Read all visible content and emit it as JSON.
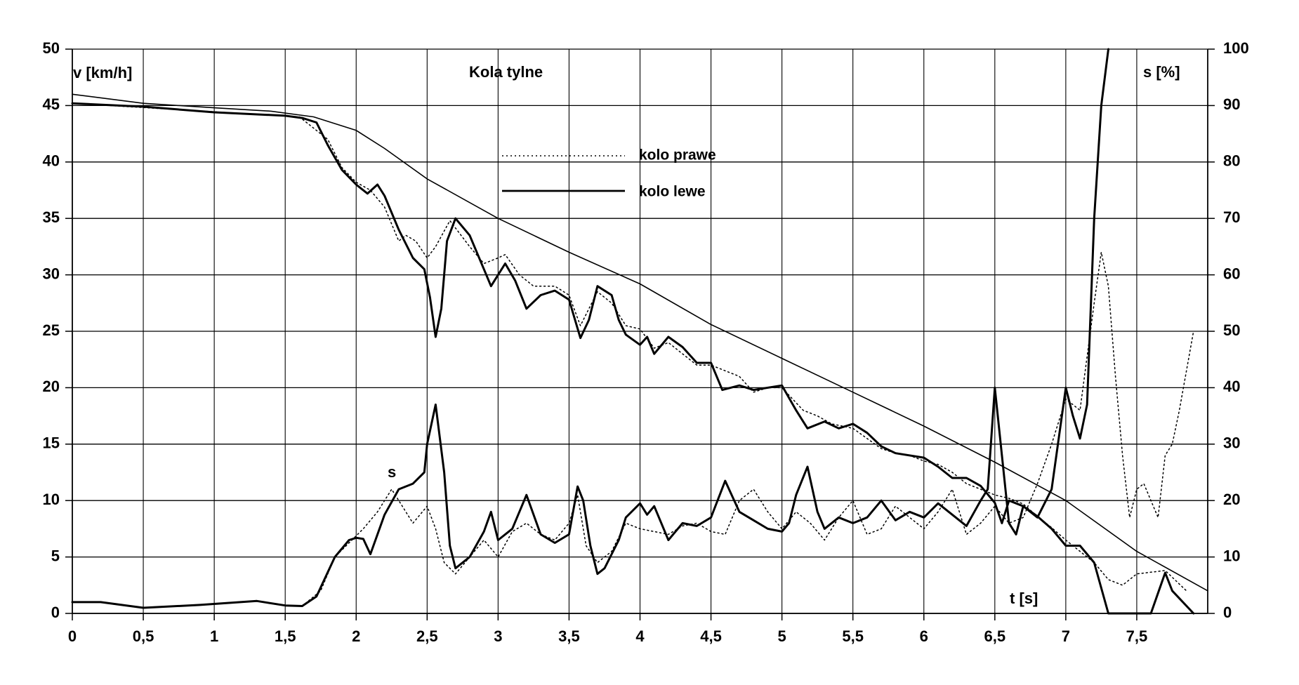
{
  "chart_data": {
    "type": "line",
    "title": "Kola tylne",
    "ylabel_left": "v [km/h]",
    "ylabel_right": "s [%]",
    "xlabel": "t [s]",
    "s_marker_label": "s",
    "xlim": [
      0,
      8
    ],
    "ylim_left": [
      0,
      50
    ],
    "ylim_right": [
      0,
      100
    ],
    "x_ticks": [
      0,
      0.5,
      1,
      1.5,
      2,
      2.5,
      3,
      3.5,
      4,
      4.5,
      5,
      5.5,
      6,
      6.5,
      7,
      7.5
    ],
    "x_tick_labels": [
      "0",
      "0,5",
      "1",
      "1,5",
      "2",
      "2,5",
      "3",
      "3,5",
      "4",
      "4,5",
      "5",
      "5,5",
      "6",
      "6,5",
      "7",
      "7,5"
    ],
    "y_left_ticks": [
      0,
      5,
      10,
      15,
      20,
      25,
      30,
      35,
      40,
      45,
      50
    ],
    "y_right_ticks": [
      0,
      10,
      20,
      30,
      40,
      50,
      60,
      70,
      80,
      90,
      100
    ],
    "grid": true,
    "legend_position": "top-center",
    "legend": [
      {
        "name": "kolo prawe",
        "style": "dotted"
      },
      {
        "name": "kolo lewe",
        "style": "solid"
      }
    ],
    "series": [
      {
        "name": "",
        "axis": "left",
        "style": "thin",
        "points": [
          [
            0,
            46
          ],
          [
            0.5,
            45.2
          ],
          [
            1,
            44.8
          ],
          [
            1.4,
            44.5
          ],
          [
            1.7,
            44
          ],
          [
            2,
            42.8
          ],
          [
            2.2,
            41.2
          ],
          [
            2.5,
            38.5
          ],
          [
            3,
            35
          ],
          [
            3.5,
            32
          ],
          [
            4,
            29.2
          ],
          [
            4.5,
            25.6
          ],
          [
            5,
            22.6
          ],
          [
            5.5,
            19.6
          ],
          [
            6,
            16.6
          ],
          [
            6.5,
            13.4
          ],
          [
            7,
            10
          ],
          [
            7.5,
            5.5
          ],
          [
            8,
            2
          ]
        ]
      },
      {
        "name": "kolo lewe",
        "axis": "left",
        "style": "solid",
        "points": [
          [
            0,
            45.2
          ],
          [
            0.5,
            44.9
          ],
          [
            1,
            44.4
          ],
          [
            1.5,
            44.1
          ],
          [
            1.62,
            43.9
          ],
          [
            1.72,
            43.5
          ],
          [
            1.8,
            41.5
          ],
          [
            1.9,
            39.3
          ],
          [
            2,
            38
          ],
          [
            2.08,
            37.2
          ],
          [
            2.15,
            38
          ],
          [
            2.2,
            37
          ],
          [
            2.3,
            34
          ],
          [
            2.4,
            31.5
          ],
          [
            2.48,
            30.5
          ],
          [
            2.52,
            28
          ],
          [
            2.56,
            24.5
          ],
          [
            2.6,
            27
          ],
          [
            2.64,
            33
          ],
          [
            2.7,
            35
          ],
          [
            2.8,
            33.5
          ],
          [
            2.9,
            30.5
          ],
          [
            2.95,
            29
          ],
          [
            3,
            30
          ],
          [
            3.05,
            31
          ],
          [
            3.12,
            29.5
          ],
          [
            3.2,
            27
          ],
          [
            3.3,
            28.2
          ],
          [
            3.4,
            28.6
          ],
          [
            3.5,
            27.8
          ],
          [
            3.58,
            24.4
          ],
          [
            3.64,
            26
          ],
          [
            3.7,
            29
          ],
          [
            3.8,
            28.2
          ],
          [
            3.85,
            26
          ],
          [
            3.9,
            24.7
          ],
          [
            4,
            23.8
          ],
          [
            4.05,
            24.5
          ],
          [
            4.1,
            23
          ],
          [
            4.2,
            24.5
          ],
          [
            4.3,
            23.6
          ],
          [
            4.4,
            22.2
          ],
          [
            4.5,
            22.2
          ],
          [
            4.58,
            19.8
          ],
          [
            4.7,
            20.2
          ],
          [
            4.8,
            19.8
          ],
          [
            5,
            20.2
          ],
          [
            5.1,
            18
          ],
          [
            5.18,
            16.4
          ],
          [
            5.3,
            17
          ],
          [
            5.4,
            16.4
          ],
          [
            5.5,
            16.8
          ],
          [
            5.6,
            16
          ],
          [
            5.7,
            14.8
          ],
          [
            5.8,
            14.2
          ],
          [
            6,
            13.8
          ],
          [
            6.1,
            13
          ],
          [
            6.2,
            12
          ],
          [
            6.3,
            12
          ],
          [
            6.4,
            11.3
          ],
          [
            6.5,
            9.8
          ],
          [
            6.55,
            8
          ],
          [
            6.6,
            10
          ],
          [
            6.7,
            9.5
          ],
          [
            6.8,
            8.6
          ],
          [
            6.9,
            7.5
          ],
          [
            7,
            6
          ],
          [
            7.1,
            6
          ],
          [
            7.2,
            4.5
          ],
          [
            7.3,
            0
          ],
          [
            7.5,
            0
          ],
          [
            7.6,
            0
          ],
          [
            7.7,
            3.6
          ],
          [
            7.75,
            2
          ],
          [
            7.9,
            0
          ]
        ]
      },
      {
        "name": "kolo prawe",
        "axis": "left",
        "style": "dotted",
        "points": [
          [
            0,
            45.2
          ],
          [
            1.6,
            44
          ],
          [
            1.8,
            42
          ],
          [
            1.9,
            39.5
          ],
          [
            2,
            38.2
          ],
          [
            2.1,
            37.5
          ],
          [
            2.2,
            36
          ],
          [
            2.3,
            33
          ],
          [
            2.35,
            33.5
          ],
          [
            2.42,
            33
          ],
          [
            2.5,
            31.5
          ],
          [
            2.56,
            32.5
          ],
          [
            2.66,
            34.8
          ],
          [
            2.8,
            32.5
          ],
          [
            2.9,
            31
          ],
          [
            3,
            31.5
          ],
          [
            3.05,
            31.8
          ],
          [
            3.15,
            30
          ],
          [
            3.25,
            29
          ],
          [
            3.4,
            29
          ],
          [
            3.5,
            28.2
          ],
          [
            3.58,
            25.5
          ],
          [
            3.7,
            28.5
          ],
          [
            3.8,
            27.5
          ],
          [
            3.9,
            25.5
          ],
          [
            4,
            25.2
          ],
          [
            4.1,
            23.5
          ],
          [
            4.2,
            24
          ],
          [
            4.3,
            23
          ],
          [
            4.4,
            22
          ],
          [
            4.5,
            22
          ],
          [
            4.6,
            21.5
          ],
          [
            4.7,
            21
          ],
          [
            4.8,
            19.6
          ],
          [
            4.9,
            20
          ],
          [
            5,
            20
          ],
          [
            5.15,
            18
          ],
          [
            5.25,
            17.5
          ],
          [
            5.35,
            16.8
          ],
          [
            5.5,
            16.4
          ],
          [
            5.6,
            15.5
          ],
          [
            5.7,
            14.6
          ],
          [
            5.8,
            14.2
          ],
          [
            5.9,
            14
          ],
          [
            6,
            13.5
          ],
          [
            6.1,
            13.2
          ],
          [
            6.2,
            12.5
          ],
          [
            6.3,
            11.5
          ],
          [
            6.4,
            11
          ],
          [
            6.5,
            10.5
          ],
          [
            6.6,
            10.2
          ],
          [
            6.7,
            9.7
          ],
          [
            6.8,
            8.6
          ],
          [
            6.9,
            7.6
          ],
          [
            7,
            6.5
          ],
          [
            7.1,
            5.5
          ],
          [
            7.2,
            4.5
          ],
          [
            7.3,
            3
          ],
          [
            7.4,
            2.5
          ],
          [
            7.5,
            3.5
          ],
          [
            7.7,
            3.8
          ],
          [
            7.85,
            2
          ]
        ]
      },
      {
        "name": "kolo lewe s",
        "axis": "right",
        "style": "solid",
        "points": [
          [
            0,
            2
          ],
          [
            0.2,
            2
          ],
          [
            0.5,
            1
          ],
          [
            0.9,
            1.5
          ],
          [
            1.3,
            2.2
          ],
          [
            1.5,
            1.4
          ],
          [
            1.62,
            1.3
          ],
          [
            1.72,
            3
          ],
          [
            1.85,
            10
          ],
          [
            1.95,
            13
          ],
          [
            2,
            13.4
          ],
          [
            2.05,
            13.2
          ],
          [
            2.1,
            10.5
          ],
          [
            2.2,
            17.5
          ],
          [
            2.3,
            22
          ],
          [
            2.4,
            23
          ],
          [
            2.48,
            25
          ],
          [
            2.5,
            30
          ],
          [
            2.56,
            37
          ],
          [
            2.62,
            25
          ],
          [
            2.66,
            12
          ],
          [
            2.7,
            8
          ],
          [
            2.8,
            10
          ],
          [
            2.9,
            14.5
          ],
          [
            2.95,
            18
          ],
          [
            3,
            13
          ],
          [
            3.1,
            15
          ],
          [
            3.2,
            21
          ],
          [
            3.3,
            14
          ],
          [
            3.4,
            12.5
          ],
          [
            3.5,
            14
          ],
          [
            3.56,
            22.5
          ],
          [
            3.6,
            20
          ],
          [
            3.65,
            12
          ],
          [
            3.7,
            7
          ],
          [
            3.75,
            8
          ],
          [
            3.85,
            13
          ],
          [
            3.9,
            17
          ],
          [
            4,
            19.5
          ],
          [
            4.05,
            17.5
          ],
          [
            4.1,
            19
          ],
          [
            4.2,
            13
          ],
          [
            4.3,
            16
          ],
          [
            4.4,
            15.5
          ],
          [
            4.5,
            17
          ],
          [
            4.6,
            23.5
          ],
          [
            4.7,
            18
          ],
          [
            4.8,
            16.5
          ],
          [
            4.9,
            15
          ],
          [
            5,
            14.5
          ],
          [
            5.05,
            16
          ],
          [
            5.1,
            21
          ],
          [
            5.18,
            26
          ],
          [
            5.25,
            18
          ],
          [
            5.3,
            15
          ],
          [
            5.4,
            17
          ],
          [
            5.5,
            16
          ],
          [
            5.6,
            17
          ],
          [
            5.7,
            20
          ],
          [
            5.8,
            16.5
          ],
          [
            5.9,
            18
          ],
          [
            6,
            17
          ],
          [
            6.1,
            19.5
          ],
          [
            6.2,
            17.5
          ],
          [
            6.3,
            15.5
          ],
          [
            6.4,
            20
          ],
          [
            6.45,
            22
          ],
          [
            6.5,
            40
          ],
          [
            6.55,
            28
          ],
          [
            6.6,
            16
          ],
          [
            6.65,
            14
          ],
          [
            6.7,
            19
          ],
          [
            6.8,
            17
          ],
          [
            6.9,
            22
          ],
          [
            7,
            40
          ],
          [
            7.05,
            35
          ],
          [
            7.1,
            31
          ],
          [
            7.15,
            37
          ],
          [
            7.2,
            70
          ],
          [
            7.25,
            90
          ],
          [
            7.3,
            100
          ]
        ]
      },
      {
        "name": "kolo prawe s",
        "axis": "right",
        "style": "dotted",
        "points": [
          [
            1.62,
            1.3
          ],
          [
            1.75,
            4
          ],
          [
            1.85,
            10
          ],
          [
            1.95,
            12.5
          ],
          [
            2.05,
            15
          ],
          [
            2.15,
            18
          ],
          [
            2.25,
            22
          ],
          [
            2.3,
            20
          ],
          [
            2.4,
            16
          ],
          [
            2.5,
            19
          ],
          [
            2.56,
            15
          ],
          [
            2.62,
            9
          ],
          [
            2.7,
            7
          ],
          [
            2.8,
            10
          ],
          [
            2.9,
            13
          ],
          [
            3,
            10
          ],
          [
            3.1,
            14.5
          ],
          [
            3.2,
            16
          ],
          [
            3.3,
            14
          ],
          [
            3.4,
            13
          ],
          [
            3.5,
            16
          ],
          [
            3.56,
            21
          ],
          [
            3.62,
            12
          ],
          [
            3.7,
            9
          ],
          [
            3.8,
            11
          ],
          [
            3.9,
            16
          ],
          [
            4,
            15
          ],
          [
            4.1,
            14.5
          ],
          [
            4.2,
            14
          ],
          [
            4.3,
            15.5
          ],
          [
            4.4,
            16
          ],
          [
            4.5,
            14.5
          ],
          [
            4.6,
            14
          ],
          [
            4.7,
            20
          ],
          [
            4.8,
            22
          ],
          [
            4.9,
            18
          ],
          [
            5,
            15
          ],
          [
            5.1,
            18
          ],
          [
            5.2,
            16
          ],
          [
            5.3,
            13
          ],
          [
            5.4,
            17
          ],
          [
            5.5,
            20
          ],
          [
            5.6,
            14
          ],
          [
            5.7,
            15
          ],
          [
            5.8,
            19
          ],
          [
            5.9,
            17
          ],
          [
            6,
            15
          ],
          [
            6.1,
            18
          ],
          [
            6.2,
            22
          ],
          [
            6.3,
            14
          ],
          [
            6.4,
            16
          ],
          [
            6.5,
            19
          ],
          [
            6.6,
            16
          ],
          [
            6.7,
            17
          ],
          [
            6.8,
            23
          ],
          [
            6.9,
            30
          ],
          [
            7,
            38
          ],
          [
            7.1,
            36
          ],
          [
            7.2,
            55
          ],
          [
            7.25,
            64
          ],
          [
            7.3,
            58
          ],
          [
            7.35,
            42
          ],
          [
            7.4,
            28
          ],
          [
            7.45,
            17
          ],
          [
            7.5,
            22
          ],
          [
            7.55,
            23
          ],
          [
            7.6,
            20
          ],
          [
            7.65,
            17
          ],
          [
            7.7,
            28
          ],
          [
            7.75,
            30
          ],
          [
            7.8,
            36
          ],
          [
            7.9,
            50
          ]
        ]
      }
    ]
  }
}
